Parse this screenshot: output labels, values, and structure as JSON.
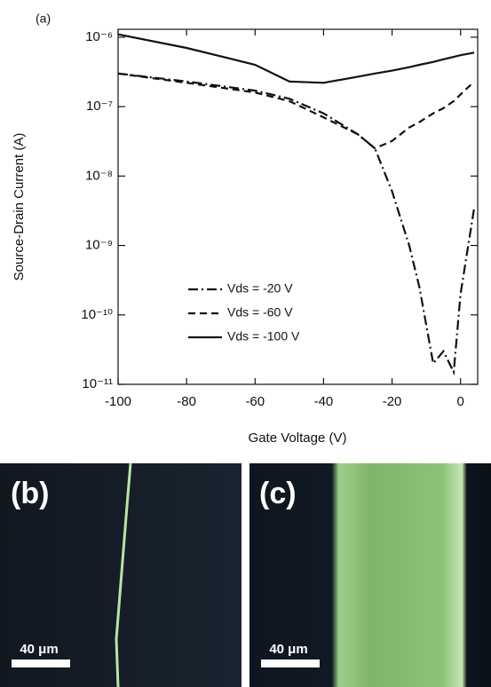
{
  "chart_data": {
    "type": "line",
    "title": "(a)",
    "x_label": "Gate Voltage (V)",
    "y_label": "Source-Drain Current (A)",
    "xlim": [
      -100,
      5
    ],
    "xticks": [
      -100,
      -80,
      -60,
      -40,
      -20,
      0
    ],
    "ylim": [
      1e-11,
      1.3e-06
    ],
    "log_y": true,
    "yticks": [
      {
        "value": 1e-11,
        "label": "10⁻¹¹"
      },
      {
        "value": 1e-10,
        "label": "10⁻¹⁰"
      },
      {
        "value": 1e-09,
        "label": "10⁻⁹"
      },
      {
        "value": 1e-08,
        "label": "10⁻⁸"
      },
      {
        "value": 1e-07,
        "label": "10⁻⁷"
      },
      {
        "value": 1e-06,
        "label": "10⁻⁶"
      }
    ],
    "x": [
      -100,
      -80,
      -60,
      -50,
      -40,
      -30,
      -25,
      -20,
      -15,
      -12,
      -8,
      -5,
      -2,
      0,
      4
    ],
    "series": [
      {
        "name": "Vds = -20 V",
        "color": "#111111",
        "dash": "dashdot",
        "values": [
          3e-07,
          2.3e-07,
          1.7e-07,
          1.3e-07,
          8e-08,
          4e-08,
          2.5e-08,
          6e-09,
          1e-09,
          2.5e-10,
          2e-11,
          3e-11,
          1.5e-11,
          2e-10,
          3.5e-09
        ]
      },
      {
        "name": "Vds = -60 V",
        "color": "#111111",
        "dash": "dashed",
        "values": [
          3e-07,
          2.2e-07,
          1.6e-07,
          1.2e-07,
          7e-08,
          4e-08,
          2.5e-08,
          3.2e-08,
          5e-08,
          6e-08,
          8e-08,
          9.5e-08,
          1.2e-07,
          1.5e-07,
          2.3e-07
        ]
      },
      {
        "name": "Vds = -100 V",
        "color": "#111111",
        "dash": "solid",
        "values": [
          1.1e-06,
          7e-07,
          4e-07,
          2.3e-07,
          2.2e-07,
          2.7e-07,
          3e-07,
          3.3e-07,
          3.7e-07,
          4e-07,
          4.4e-07,
          4.8e-07,
          5.2e-07,
          5.5e-07,
          6e-07
        ]
      }
    ]
  },
  "panels": [
    {
      "label": "(b)",
      "scale_bar": "40 μm"
    },
    {
      "label": "(c)",
      "scale_bar": "40 μm"
    }
  ]
}
